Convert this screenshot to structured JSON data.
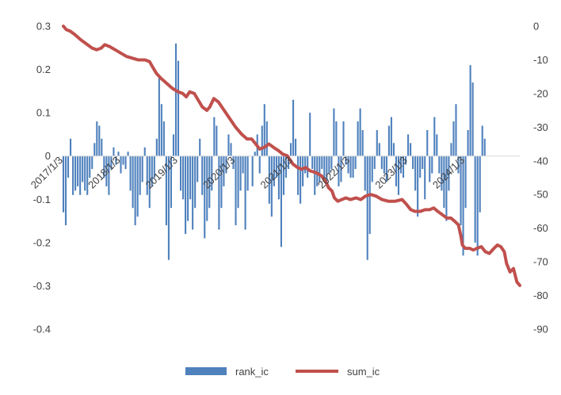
{
  "chart_data": {
    "type": "bar+line",
    "colors": {
      "bars": "#4f81bd",
      "line": "#c0504d",
      "axis": "#d9d9d9",
      "text": "#404040"
    },
    "left_axis": {
      "ylim": [
        -0.4,
        0.3
      ],
      "ticks": [
        "0.3",
        "0.2",
        "0.1",
        "0",
        "-0.1",
        "-0.2",
        "-0.3",
        "-0.4"
      ],
      "tick_values": [
        0.3,
        0.2,
        0.1,
        0,
        -0.1,
        -0.2,
        -0.3,
        -0.4
      ]
    },
    "right_axis": {
      "ylim": [
        -90,
        0
      ],
      "ticks": [
        "0",
        "-10",
        "-20",
        "-30",
        "-40",
        "-50",
        "-60",
        "-70",
        "-80",
        "-90"
      ],
      "tick_values": [
        0,
        -10,
        -20,
        -30,
        -40,
        -50,
        -60,
        -70,
        -80,
        -90
      ]
    },
    "x_axis": {
      "range": [
        2017.0,
        2024.95
      ],
      "ticks": [
        {
          "label": "2017/1/3",
          "x": 2017.0
        },
        {
          "label": "2018/1/3",
          "x": 2018.0
        },
        {
          "label": "2019/1/3",
          "x": 2019.0
        },
        {
          "label": "2020/1/3",
          "x": 2020.0
        },
        {
          "label": "2021/1/3",
          "x": 2021.0
        },
        {
          "label": "2022/1/3",
          "x": 2022.0
        },
        {
          "label": "2023/1/3",
          "x": 2023.0
        },
        {
          "label": "2024/1/3",
          "x": 2024.0
        }
      ]
    },
    "series": [
      {
        "name": "rank_ic",
        "kind": "bar",
        "axis": "left",
        "x_start": 2017.0,
        "x_step": 0.0417,
        "values": [
          -0.13,
          -0.16,
          -0.05,
          0.04,
          -0.09,
          -0.08,
          -0.07,
          -0.09,
          -0.06,
          -0.08,
          -0.09,
          -0.05,
          -0.03,
          0.03,
          0.08,
          0.07,
          0.04,
          -0.05,
          -0.07,
          -0.09,
          -0.03,
          0.02,
          -0.02,
          0.01,
          -0.04,
          -0.02,
          -0.03,
          0.01,
          -0.08,
          -0.12,
          -0.16,
          -0.14,
          -0.09,
          -0.06,
          0.02,
          -0.09,
          -0.12,
          -0.07,
          -0.05,
          0.04,
          0.18,
          0.12,
          0.08,
          -0.16,
          -0.24,
          -0.12,
          0.05,
          0.26,
          0.22,
          -0.08,
          -0.1,
          -0.18,
          -0.15,
          -0.1,
          -0.17,
          -0.12,
          -0.06,
          0.04,
          -0.09,
          -0.19,
          -0.15,
          -0.12,
          -0.08,
          0.09,
          0.07,
          -0.17,
          -0.12,
          -0.07,
          -0.04,
          0.05,
          0.03,
          -0.03,
          -0.16,
          -0.12,
          -0.08,
          -0.04,
          -0.17,
          -0.08,
          0.0,
          -0.07,
          0.01,
          0.05,
          -0.04,
          0.07,
          0.12,
          0.08,
          -0.11,
          -0.14,
          -0.07,
          -0.05,
          -0.1,
          -0.21,
          -0.09,
          -0.05,
          -0.03,
          0.03,
          0.13,
          0.04,
          -0.09,
          -0.11,
          -0.07,
          -0.04,
          -0.05,
          0.1,
          -0.03,
          -0.09,
          -0.07,
          -0.06,
          -0.03,
          -0.05,
          -0.07,
          -0.04,
          -0.03,
          0.11,
          0.08,
          -0.07,
          -0.06,
          0.08,
          -0.02,
          -0.04,
          -0.05,
          -0.05,
          -0.03,
          0.08,
          0.11,
          0.06,
          -0.08,
          -0.24,
          -0.18,
          -0.06,
          -0.03,
          0.06,
          0.03,
          -0.03,
          -0.04,
          -0.06,
          0.07,
          0.09,
          0.03,
          -0.07,
          -0.09,
          -0.04,
          -0.05,
          -0.02,
          0.05,
          0.03,
          -0.03,
          -0.08,
          -0.14,
          -0.05,
          -0.03,
          -0.1,
          0.06,
          -0.06,
          -0.04,
          0.09,
          0.05,
          -0.04,
          -0.08,
          -0.12,
          -0.15,
          -0.08,
          0.03,
          0.08,
          0.12,
          -0.04,
          -0.16,
          -0.23,
          -0.12,
          0.06,
          0.21,
          0.17,
          -0.2,
          -0.23,
          -0.13,
          0.07,
          0.04
        ]
      },
      {
        "name": "sum_ic",
        "kind": "line",
        "axis": "right",
        "points": [
          [
            2017.0,
            0
          ],
          [
            2017.05,
            -1
          ],
          [
            2017.12,
            -1.5
          ],
          [
            2017.2,
            -2.5
          ],
          [
            2017.3,
            -4
          ],
          [
            2017.42,
            -5.5
          ],
          [
            2017.5,
            -6.5
          ],
          [
            2017.58,
            -7
          ],
          [
            2017.66,
            -6.5
          ],
          [
            2017.72,
            -5.5
          ],
          [
            2017.8,
            -6
          ],
          [
            2017.9,
            -7
          ],
          [
            2018.0,
            -8
          ],
          [
            2018.1,
            -9
          ],
          [
            2018.2,
            -9.5
          ],
          [
            2018.3,
            -10
          ],
          [
            2018.42,
            -10
          ],
          [
            2018.5,
            -10.5
          ],
          [
            2018.55,
            -12
          ],
          [
            2018.62,
            -14
          ],
          [
            2018.7,
            -15.5
          ],
          [
            2018.8,
            -17
          ],
          [
            2018.9,
            -18.5
          ],
          [
            2019.0,
            -19.5
          ],
          [
            2019.08,
            -20
          ],
          [
            2019.14,
            -21
          ],
          [
            2019.2,
            -19.5
          ],
          [
            2019.28,
            -20
          ],
          [
            2019.35,
            -22
          ],
          [
            2019.42,
            -24
          ],
          [
            2019.5,
            -25
          ],
          [
            2019.55,
            -24
          ],
          [
            2019.62,
            -21.5
          ],
          [
            2019.7,
            -22.5
          ],
          [
            2019.8,
            -25
          ],
          [
            2019.9,
            -27.5
          ],
          [
            2020.0,
            -30
          ],
          [
            2020.1,
            -32
          ],
          [
            2020.2,
            -33.5
          ],
          [
            2020.28,
            -33.5
          ],
          [
            2020.35,
            -35
          ],
          [
            2020.42,
            -36.5
          ],
          [
            2020.5,
            -36
          ],
          [
            2020.58,
            -35
          ],
          [
            2020.66,
            -36
          ],
          [
            2020.75,
            -37
          ],
          [
            2020.82,
            -38
          ],
          [
            2020.9,
            -38.5
          ],
          [
            2021.0,
            -41
          ],
          [
            2021.08,
            -42
          ],
          [
            2021.15,
            -42.5
          ],
          [
            2021.22,
            -42
          ],
          [
            2021.3,
            -43
          ],
          [
            2021.4,
            -43.5
          ],
          [
            2021.5,
            -44.5
          ],
          [
            2021.58,
            -46.5
          ],
          [
            2021.62,
            -48
          ],
          [
            2021.68,
            -49
          ],
          [
            2021.72,
            -51
          ],
          [
            2021.78,
            -52
          ],
          [
            2021.85,
            -51.5
          ],
          [
            2021.92,
            -51
          ],
          [
            2022.0,
            -51.5
          ],
          [
            2022.1,
            -51
          ],
          [
            2022.18,
            -51.5
          ],
          [
            2022.26,
            -50.5
          ],
          [
            2022.35,
            -50
          ],
          [
            2022.45,
            -50.5
          ],
          [
            2022.55,
            -51.5
          ],
          [
            2022.66,
            -52
          ],
          [
            2022.78,
            -52
          ],
          [
            2022.9,
            -51.5
          ],
          [
            2022.98,
            -53
          ],
          [
            2023.05,
            -54.5
          ],
          [
            2023.12,
            -55
          ],
          [
            2023.22,
            -55
          ],
          [
            2023.3,
            -54.5
          ],
          [
            2023.38,
            -54.5
          ],
          [
            2023.45,
            -54
          ],
          [
            2023.52,
            -55
          ],
          [
            2023.6,
            -56
          ],
          [
            2023.68,
            -57
          ],
          [
            2023.75,
            -57
          ],
          [
            2023.82,
            -58
          ],
          [
            2023.88,
            -59
          ],
          [
            2023.92,
            -62
          ],
          [
            2023.95,
            -65
          ],
          [
            2024.0,
            -66
          ],
          [
            2024.08,
            -66
          ],
          [
            2024.14,
            -66.5
          ],
          [
            2024.2,
            -66
          ],
          [
            2024.28,
            -65.5
          ],
          [
            2024.35,
            -67
          ],
          [
            2024.42,
            -67.5
          ],
          [
            2024.5,
            -66
          ],
          [
            2024.56,
            -65
          ],
          [
            2024.62,
            -65.5
          ],
          [
            2024.68,
            -67
          ],
          [
            2024.72,
            -70.5
          ],
          [
            2024.78,
            -73
          ],
          [
            2024.84,
            -72
          ],
          [
            2024.9,
            -76
          ],
          [
            2024.95,
            -77
          ]
        ]
      }
    ],
    "legend": {
      "placement": "bottom",
      "labels": [
        "rank_ic",
        "sum_ic"
      ]
    },
    "grid": false
  }
}
